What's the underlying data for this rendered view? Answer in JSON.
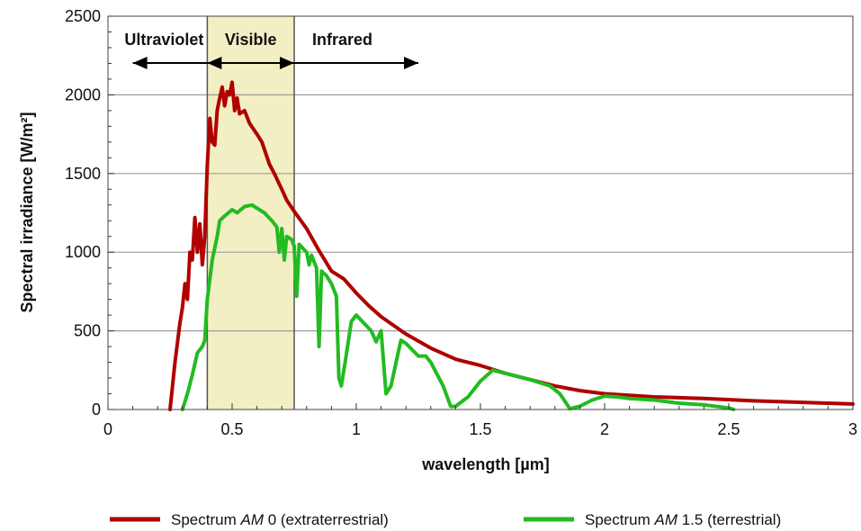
{
  "chart_data": {
    "type": "line",
    "xlabel": "wavelength [µm]",
    "ylabel": "Spectral irradiance [W/m²]",
    "xlim": [
      0,
      3
    ],
    "ylim": [
      0,
      2500
    ],
    "x_ticks": [
      "0",
      "0.5",
      "1",
      "1.5",
      "2",
      "2.5",
      "3"
    ],
    "y_ticks": [
      "0",
      "500",
      "1000",
      "1500",
      "2000",
      "2500"
    ],
    "grid": "horizontal",
    "legend_position": "bottom",
    "regions": [
      {
        "label": "Ultraviolet",
        "range": [
          0,
          0.4
        ]
      },
      {
        "label": "Visible",
        "range": [
          0.4,
          0.75
        ],
        "color": "#f3efc4"
      },
      {
        "label": "Infrared",
        "range": [
          0.75,
          1.25
        ]
      }
    ],
    "series": [
      {
        "name": "Spectrum AM 0 (extraterrestrial)",
        "legend_parts": [
          "Spectrum ",
          "AM",
          " 0 (extraterrestrial)"
        ],
        "color": "#b00000",
        "points": [
          [
            0.25,
            0
          ],
          [
            0.27,
            300
          ],
          [
            0.29,
            550
          ],
          [
            0.3,
            650
          ],
          [
            0.31,
            800
          ],
          [
            0.32,
            700
          ],
          [
            0.33,
            1000
          ],
          [
            0.34,
            950
          ],
          [
            0.35,
            1220
          ],
          [
            0.36,
            1000
          ],
          [
            0.37,
            1180
          ],
          [
            0.38,
            920
          ],
          [
            0.39,
            1100
          ],
          [
            0.4,
            1550
          ],
          [
            0.41,
            1850
          ],
          [
            0.42,
            1700
          ],
          [
            0.43,
            1680
          ],
          [
            0.44,
            1900
          ],
          [
            0.45,
            1980
          ],
          [
            0.46,
            2050
          ],
          [
            0.47,
            1930
          ],
          [
            0.48,
            2020
          ],
          [
            0.49,
            2000
          ],
          [
            0.5,
            2080
          ],
          [
            0.51,
            1900
          ],
          [
            0.52,
            1980
          ],
          [
            0.53,
            1880
          ],
          [
            0.55,
            1900
          ],
          [
            0.57,
            1820
          ],
          [
            0.6,
            1750
          ],
          [
            0.62,
            1700
          ],
          [
            0.65,
            1560
          ],
          [
            0.67,
            1500
          ],
          [
            0.7,
            1400
          ],
          [
            0.72,
            1330
          ],
          [
            0.75,
            1260
          ],
          [
            0.8,
            1150
          ],
          [
            0.85,
            1010
          ],
          [
            0.9,
            880
          ],
          [
            0.95,
            830
          ],
          [
            1.0,
            740
          ],
          [
            1.05,
            660
          ],
          [
            1.1,
            590
          ],
          [
            1.2,
            480
          ],
          [
            1.3,
            390
          ],
          [
            1.4,
            320
          ],
          [
            1.5,
            280
          ],
          [
            1.6,
            230
          ],
          [
            1.7,
            190
          ],
          [
            1.8,
            150
          ],
          [
            1.9,
            120
          ],
          [
            2.0,
            100
          ],
          [
            2.2,
            80
          ],
          [
            2.4,
            70
          ],
          [
            2.6,
            55
          ],
          [
            2.8,
            45
          ],
          [
            3.0,
            35
          ]
        ]
      },
      {
        "name": "Spectrum AM 1.5 (terrestrial)",
        "legend_parts": [
          "Spectrum ",
          "AM",
          " 1.5 (terrestrial)"
        ],
        "color": "#22bb22",
        "points": [
          [
            0.3,
            0
          ],
          [
            0.32,
            100
          ],
          [
            0.34,
            220
          ],
          [
            0.36,
            360
          ],
          [
            0.38,
            400
          ],
          [
            0.39,
            440
          ],
          [
            0.4,
            700
          ],
          [
            0.42,
            950
          ],
          [
            0.44,
            1100
          ],
          [
            0.45,
            1200
          ],
          [
            0.47,
            1230
          ],
          [
            0.5,
            1270
          ],
          [
            0.52,
            1250
          ],
          [
            0.55,
            1290
          ],
          [
            0.58,
            1300
          ],
          [
            0.6,
            1280
          ],
          [
            0.63,
            1250
          ],
          [
            0.66,
            1200
          ],
          [
            0.68,
            1160
          ],
          [
            0.69,
            1000
          ],
          [
            0.7,
            1150
          ],
          [
            0.71,
            950
          ],
          [
            0.72,
            1100
          ],
          [
            0.74,
            1080
          ],
          [
            0.75,
            1040
          ],
          [
            0.76,
            720
          ],
          [
            0.77,
            1050
          ],
          [
            0.8,
            1000
          ],
          [
            0.81,
            920
          ],
          [
            0.82,
            980
          ],
          [
            0.84,
            900
          ],
          [
            0.85,
            400
          ],
          [
            0.86,
            880
          ],
          [
            0.88,
            850
          ],
          [
            0.9,
            800
          ],
          [
            0.92,
            720
          ],
          [
            0.93,
            200
          ],
          [
            0.94,
            150
          ],
          [
            0.96,
            350
          ],
          [
            0.98,
            560
          ],
          [
            1.0,
            600
          ],
          [
            1.03,
            550
          ],
          [
            1.06,
            500
          ],
          [
            1.08,
            430
          ],
          [
            1.1,
            500
          ],
          [
            1.12,
            100
          ],
          [
            1.14,
            150
          ],
          [
            1.17,
            370
          ],
          [
            1.18,
            440
          ],
          [
            1.2,
            420
          ],
          [
            1.25,
            340
          ],
          [
            1.28,
            340
          ],
          [
            1.3,
            300
          ],
          [
            1.35,
            150
          ],
          [
            1.38,
            20
          ],
          [
            1.4,
            20
          ],
          [
            1.45,
            80
          ],
          [
            1.5,
            180
          ],
          [
            1.55,
            250
          ],
          [
            1.6,
            230
          ],
          [
            1.7,
            190
          ],
          [
            1.78,
            150
          ],
          [
            1.82,
            100
          ],
          [
            1.86,
            5
          ],
          [
            1.9,
            20
          ],
          [
            1.95,
            60
          ],
          [
            2.0,
            85
          ],
          [
            2.05,
            80
          ],
          [
            2.1,
            70
          ],
          [
            2.2,
            60
          ],
          [
            2.3,
            40
          ],
          [
            2.4,
            30
          ],
          [
            2.5,
            10
          ],
          [
            2.52,
            0
          ]
        ]
      }
    ]
  }
}
